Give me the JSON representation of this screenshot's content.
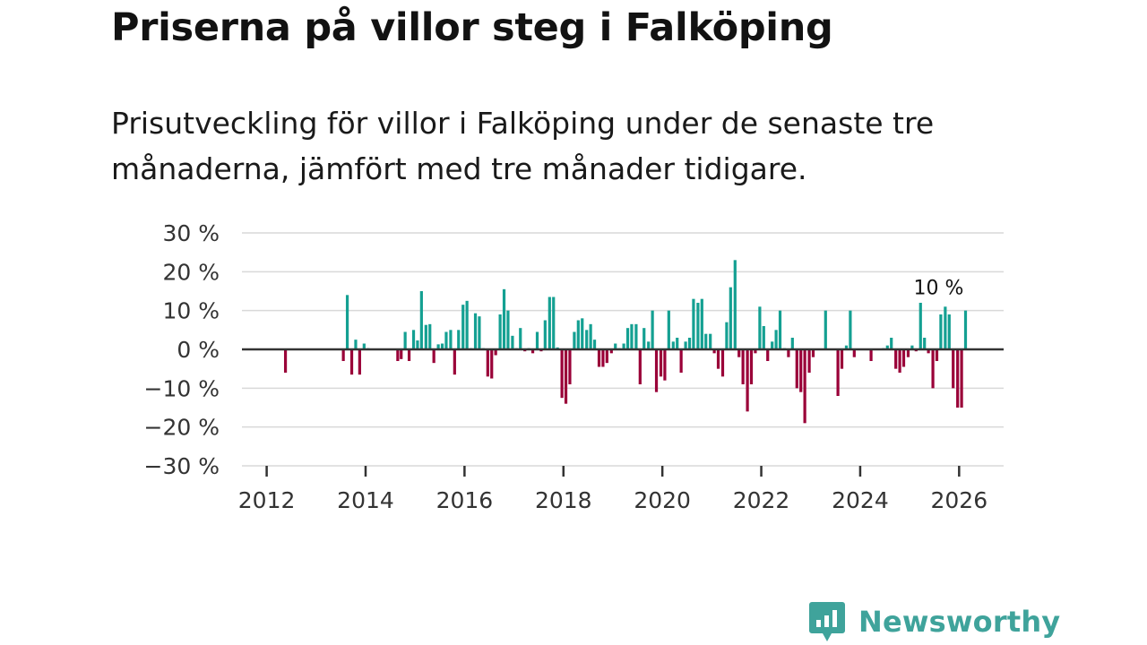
{
  "title": "Priserna på villor steg i Falköping",
  "subtitle": "Prisutveckling för villor i Falköping under de senaste tre månaderna, jämfört med tre månader tidigare.",
  "brand": {
    "name": "Newsworthy"
  },
  "colors": {
    "positive": "#14a092",
    "negative": "#9a0038",
    "grid": "#d9d9d9",
    "zero": "#333333",
    "brand": "#3fa39b"
  },
  "chart_data": {
    "type": "bar",
    "xlabel": "",
    "ylabel": "",
    "ylim": [
      -30,
      30
    ],
    "xlim": [
      2011.5,
      2026.9
    ],
    "y_ticks": [
      30,
      20,
      10,
      0,
      -10,
      -20,
      -30
    ],
    "y_tick_labels": [
      "30 %",
      "20 %",
      "10 %",
      "0 %",
      "−10 %",
      "−20 %",
      "−30 %"
    ],
    "x_ticks": [
      2012,
      2014,
      2016,
      2018,
      2020,
      2022,
      2024,
      2026
    ],
    "x_tick_labels": [
      "2012",
      "2014",
      "2016",
      "2018",
      "2020",
      "2022",
      "2024",
      "2026"
    ],
    "annotation": {
      "text": "10 %",
      "x": 2026.13,
      "y": 10
    },
    "bar_width_years": 0.058,
    "points": [
      {
        "x": 2012.38,
        "y": -6
      },
      {
        "x": 2013.55,
        "y": -3
      },
      {
        "x": 2013.63,
        "y": 14
      },
      {
        "x": 2013.72,
        "y": -6.5
      },
      {
        "x": 2013.8,
        "y": 2.5
      },
      {
        "x": 2013.88,
        "y": -6.5
      },
      {
        "x": 2013.97,
        "y": 1.5
      },
      {
        "x": 2014.05,
        "y": 0.3
      },
      {
        "x": 2014.65,
        "y": -3
      },
      {
        "x": 2014.72,
        "y": -2.5
      },
      {
        "x": 2014.8,
        "y": 4.5
      },
      {
        "x": 2014.88,
        "y": -3
      },
      {
        "x": 2014.97,
        "y": 5
      },
      {
        "x": 2015.05,
        "y": 2.3
      },
      {
        "x": 2015.13,
        "y": 15
      },
      {
        "x": 2015.22,
        "y": 6.3
      },
      {
        "x": 2015.3,
        "y": 6.5
      },
      {
        "x": 2015.38,
        "y": -3.5
      },
      {
        "x": 2015.47,
        "y": 1.3
      },
      {
        "x": 2015.55,
        "y": 1.5
      },
      {
        "x": 2015.63,
        "y": 4.5
      },
      {
        "x": 2015.72,
        "y": 5
      },
      {
        "x": 2015.8,
        "y": -6.5
      },
      {
        "x": 2015.88,
        "y": 5
      },
      {
        "x": 2015.97,
        "y": 11.5
      },
      {
        "x": 2016.05,
        "y": 12.5
      },
      {
        "x": 2016.13,
        "y": 0.3
      },
      {
        "x": 2016.22,
        "y": 9.3
      },
      {
        "x": 2016.3,
        "y": 8.5
      },
      {
        "x": 2016.38,
        "y": 0.3
      },
      {
        "x": 2016.47,
        "y": -7
      },
      {
        "x": 2016.55,
        "y": -7.5
      },
      {
        "x": 2016.63,
        "y": -1.5
      },
      {
        "x": 2016.72,
        "y": 9
      },
      {
        "x": 2016.8,
        "y": 15.5
      },
      {
        "x": 2016.88,
        "y": 10
      },
      {
        "x": 2016.97,
        "y": 3.5
      },
      {
        "x": 2017.05,
        "y": 0.3
      },
      {
        "x": 2017.13,
        "y": 5.5
      },
      {
        "x": 2017.22,
        "y": -0.5
      },
      {
        "x": 2017.3,
        "y": 0.3
      },
      {
        "x": 2017.38,
        "y": -1
      },
      {
        "x": 2017.47,
        "y": 4.5
      },
      {
        "x": 2017.55,
        "y": -0.5
      },
      {
        "x": 2017.63,
        "y": 7.5
      },
      {
        "x": 2017.72,
        "y": 13.5
      },
      {
        "x": 2017.8,
        "y": 13.5
      },
      {
        "x": 2017.88,
        "y": 0.5
      },
      {
        "x": 2017.97,
        "y": -12.5
      },
      {
        "x": 2018.05,
        "y": -14
      },
      {
        "x": 2018.13,
        "y": -9
      },
      {
        "x": 2018.22,
        "y": 4.5
      },
      {
        "x": 2018.3,
        "y": 7.5
      },
      {
        "x": 2018.38,
        "y": 8
      },
      {
        "x": 2018.47,
        "y": 5
      },
      {
        "x": 2018.55,
        "y": 6.5
      },
      {
        "x": 2018.63,
        "y": 2.5
      },
      {
        "x": 2018.72,
        "y": -4.5
      },
      {
        "x": 2018.8,
        "y": -4.5
      },
      {
        "x": 2018.88,
        "y": -3.5
      },
      {
        "x": 2018.97,
        "y": -1
      },
      {
        "x": 2019.05,
        "y": 1.5
      },
      {
        "x": 2019.13,
        "y": 0.3
      },
      {
        "x": 2019.22,
        "y": 1.5
      },
      {
        "x": 2019.3,
        "y": 5.5
      },
      {
        "x": 2019.38,
        "y": 6.5
      },
      {
        "x": 2019.47,
        "y": 6.5
      },
      {
        "x": 2019.55,
        "y": -9
      },
      {
        "x": 2019.63,
        "y": 5.5
      },
      {
        "x": 2019.72,
        "y": 2
      },
      {
        "x": 2019.8,
        "y": 10
      },
      {
        "x": 2019.88,
        "y": -11
      },
      {
        "x": 2019.97,
        "y": -7
      },
      {
        "x": 2020.05,
        "y": -8
      },
      {
        "x": 2020.13,
        "y": 10
      },
      {
        "x": 2020.22,
        "y": 2
      },
      {
        "x": 2020.3,
        "y": 3
      },
      {
        "x": 2020.38,
        "y": -6
      },
      {
        "x": 2020.47,
        "y": 2
      },
      {
        "x": 2020.55,
        "y": 3
      },
      {
        "x": 2020.63,
        "y": 13
      },
      {
        "x": 2020.72,
        "y": 12
      },
      {
        "x": 2020.8,
        "y": 13
      },
      {
        "x": 2020.88,
        "y": 4
      },
      {
        "x": 2020.97,
        "y": 4
      },
      {
        "x": 2021.05,
        "y": -1
      },
      {
        "x": 2021.13,
        "y": -5
      },
      {
        "x": 2021.22,
        "y": -7
      },
      {
        "x": 2021.3,
        "y": 7
      },
      {
        "x": 2021.38,
        "y": 16
      },
      {
        "x": 2021.47,
        "y": 23
      },
      {
        "x": 2021.55,
        "y": -2
      },
      {
        "x": 2021.63,
        "y": -9
      },
      {
        "x": 2021.72,
        "y": -16
      },
      {
        "x": 2021.8,
        "y": -9
      },
      {
        "x": 2021.88,
        "y": -1
      },
      {
        "x": 2021.97,
        "y": 11
      },
      {
        "x": 2022.05,
        "y": 6
      },
      {
        "x": 2022.13,
        "y": -3
      },
      {
        "x": 2022.22,
        "y": 2
      },
      {
        "x": 2022.3,
        "y": 5
      },
      {
        "x": 2022.38,
        "y": 10
      },
      {
        "x": 2022.47,
        "y": 0.3
      },
      {
        "x": 2022.55,
        "y": -2
      },
      {
        "x": 2022.63,
        "y": 3
      },
      {
        "x": 2022.72,
        "y": -10
      },
      {
        "x": 2022.8,
        "y": -11
      },
      {
        "x": 2022.88,
        "y": -19
      },
      {
        "x": 2022.97,
        "y": -6
      },
      {
        "x": 2023.05,
        "y": -2
      },
      {
        "x": 2023.3,
        "y": 10
      },
      {
        "x": 2023.55,
        "y": -12
      },
      {
        "x": 2023.63,
        "y": -5
      },
      {
        "x": 2023.72,
        "y": 1
      },
      {
        "x": 2023.8,
        "y": 10
      },
      {
        "x": 2023.88,
        "y": -2
      },
      {
        "x": 2024.22,
        "y": -3
      },
      {
        "x": 2024.47,
        "y": 0.3
      },
      {
        "x": 2024.55,
        "y": 1
      },
      {
        "x": 2024.63,
        "y": 3
      },
      {
        "x": 2024.72,
        "y": -5
      },
      {
        "x": 2024.8,
        "y": -6
      },
      {
        "x": 2024.88,
        "y": -4.5
      },
      {
        "x": 2024.97,
        "y": -2
      },
      {
        "x": 2025.05,
        "y": 1
      },
      {
        "x": 2025.13,
        "y": -0.5
      },
      {
        "x": 2025.22,
        "y": 12
      },
      {
        "x": 2025.3,
        "y": 3
      },
      {
        "x": 2025.38,
        "y": -1
      },
      {
        "x": 2025.47,
        "y": -10
      },
      {
        "x": 2025.55,
        "y": -3
      },
      {
        "x": 2025.63,
        "y": 9
      },
      {
        "x": 2025.72,
        "y": 11
      },
      {
        "x": 2025.8,
        "y": 9
      },
      {
        "x": 2025.88,
        "y": -10
      },
      {
        "x": 2025.97,
        "y": -15
      },
      {
        "x": 2026.05,
        "y": -15
      },
      {
        "x": 2026.13,
        "y": 10
      }
    ]
  }
}
